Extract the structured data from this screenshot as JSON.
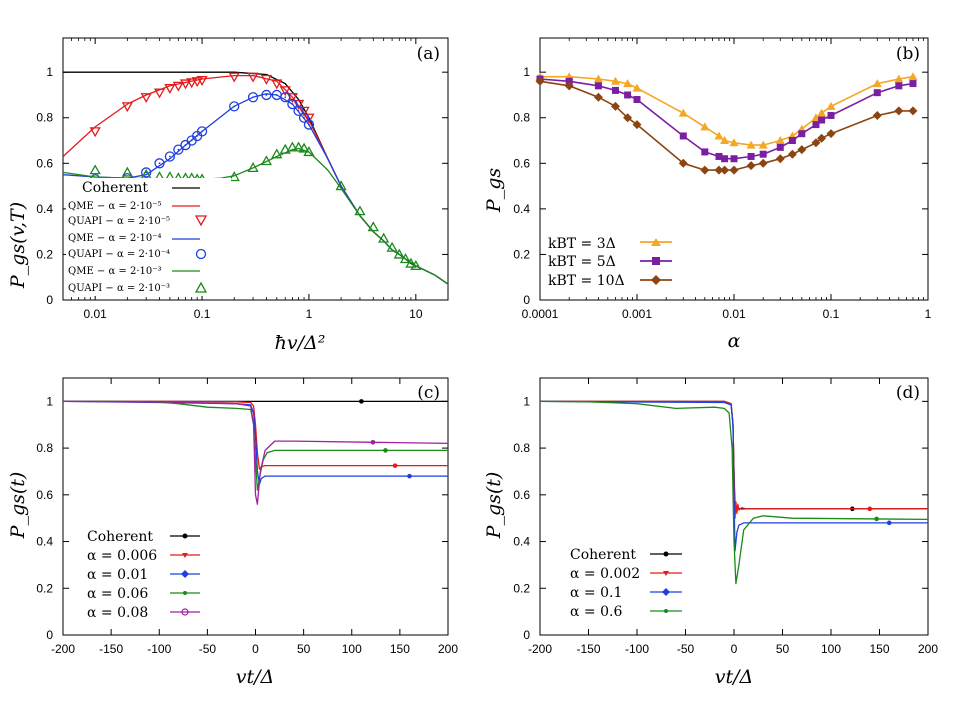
{
  "chart_data": [
    {
      "panel_label": "(a)",
      "type": "line",
      "xscale": "log",
      "xlim": [
        0.005,
        20
      ],
      "ylim": [
        0,
        1.15
      ],
      "xticks": [
        0.01,
        0.1,
        1,
        10
      ],
      "xtick_labels": [
        "0.01",
        "0.1",
        "1",
        "10"
      ],
      "yticks": [
        0,
        0.2,
        0.4,
        0.6,
        0.8,
        1
      ],
      "ytick_labels": [
        "0",
        "0.2",
        "0.4",
        "0.6",
        "0.8",
        "1"
      ],
      "xlabel": "ħv/Δ²",
      "ylabel": "P_gs(v,T)",
      "legend_position": "left",
      "series": [
        {
          "name": "Coherent",
          "kind": "line",
          "color": "#000000",
          "x": [
            0.005,
            0.05,
            0.1,
            0.2,
            0.4,
            0.6,
            0.8,
            1,
            1.5,
            2,
            3,
            4,
            5,
            6,
            7,
            8,
            9,
            10,
            15,
            20
          ],
          "y": [
            1,
            1,
            1,
            1,
            0.99,
            0.95,
            0.88,
            0.8,
            0.62,
            0.5,
            0.37,
            0.3,
            0.26,
            0.22,
            0.2,
            0.18,
            0.16,
            0.15,
            0.11,
            0.07
          ]
        },
        {
          "name": "QME − α = 2·10⁻⁵",
          "kind": "line",
          "color": "#e41a1c",
          "x": [
            0.005,
            0.01,
            0.02,
            0.03,
            0.05,
            0.1,
            0.2,
            0.3,
            0.5,
            0.7,
            1,
            1.5,
            2,
            3,
            4,
            5,
            6,
            7,
            8,
            10,
            15,
            20
          ],
          "y": [
            0.63,
            0.76,
            0.86,
            0.9,
            0.94,
            0.97,
            0.985,
            0.985,
            0.96,
            0.89,
            0.79,
            0.62,
            0.5,
            0.37,
            0.3,
            0.26,
            0.22,
            0.2,
            0.18,
            0.15,
            0.11,
            0.07
          ]
        },
        {
          "name": "QUAPI − α = 2·10⁻⁵",
          "kind": "markers",
          "marker": "triangle-down",
          "color": "#e41a1c",
          "x": [
            0.01,
            0.02,
            0.03,
            0.04,
            0.05,
            0.06,
            0.07,
            0.08,
            0.09,
            0.1,
            0.2,
            0.3,
            0.4,
            0.5,
            0.6,
            0.7,
            0.8,
            0.9,
            1
          ],
          "y": [
            0.74,
            0.85,
            0.89,
            0.91,
            0.93,
            0.94,
            0.95,
            0.955,
            0.96,
            0.965,
            0.98,
            0.98,
            0.97,
            0.95,
            0.92,
            0.89,
            0.86,
            0.83,
            0.8
          ]
        },
        {
          "name": "QME − α = 2·10⁻⁴",
          "kind": "line",
          "color": "#1f3fe0",
          "x": [
            0.005,
            0.01,
            0.02,
            0.03,
            0.05,
            0.07,
            0.1,
            0.2,
            0.3,
            0.4,
            0.5,
            0.7,
            1,
            1.5,
            2,
            3,
            4,
            5,
            6,
            7,
            8,
            10,
            15,
            20
          ],
          "y": [
            0.55,
            0.54,
            0.535,
            0.55,
            0.62,
            0.68,
            0.74,
            0.85,
            0.89,
            0.905,
            0.9,
            0.86,
            0.77,
            0.62,
            0.5,
            0.37,
            0.3,
            0.26,
            0.22,
            0.2,
            0.18,
            0.15,
            0.11,
            0.07
          ]
        },
        {
          "name": "QUAPI − α = 2·10⁻⁴",
          "kind": "markers",
          "marker": "circle-dot",
          "color": "#1f3fe0",
          "x": [
            0.01,
            0.02,
            0.03,
            0.04,
            0.05,
            0.06,
            0.07,
            0.08,
            0.09,
            0.1,
            0.2,
            0.3,
            0.4,
            0.5,
            0.6,
            0.7,
            0.8,
            0.9,
            1
          ],
          "y": [
            0.53,
            0.535,
            0.56,
            0.6,
            0.63,
            0.66,
            0.68,
            0.7,
            0.72,
            0.74,
            0.85,
            0.89,
            0.9,
            0.9,
            0.89,
            0.86,
            0.83,
            0.8,
            0.77
          ]
        },
        {
          "name": "QME − α = 2·10⁻³",
          "kind": "line",
          "color": "#1a8a1a",
          "x": [
            0.005,
            0.01,
            0.02,
            0.05,
            0.1,
            0.15,
            0.2,
            0.3,
            0.5,
            0.7,
            0.8,
            1,
            1.5,
            2,
            3,
            4,
            5,
            6,
            7,
            8,
            10,
            15,
            20
          ],
          "y": [
            0.56,
            0.54,
            0.535,
            0.53,
            0.53,
            0.535,
            0.545,
            0.58,
            0.63,
            0.66,
            0.665,
            0.65,
            0.57,
            0.49,
            0.37,
            0.3,
            0.26,
            0.22,
            0.2,
            0.18,
            0.15,
            0.11,
            0.07
          ]
        },
        {
          "name": "QUAPI − α = 2·10⁻³",
          "kind": "markers",
          "marker": "triangle-up",
          "color": "#1a8a1a",
          "x": [
            0.01,
            0.02,
            0.03,
            0.04,
            0.05,
            0.06,
            0.07,
            0.08,
            0.09,
            0.1,
            0.2,
            0.3,
            0.4,
            0.5,
            0.6,
            0.7,
            0.8,
            0.9,
            1,
            2,
            3,
            4,
            5,
            6,
            7,
            8,
            9,
            10
          ],
          "y": [
            0.57,
            0.56,
            0.55,
            0.54,
            0.54,
            0.535,
            0.535,
            0.535,
            0.53,
            0.53,
            0.54,
            0.58,
            0.61,
            0.64,
            0.66,
            0.67,
            0.67,
            0.665,
            0.65,
            0.5,
            0.39,
            0.32,
            0.27,
            0.23,
            0.2,
            0.18,
            0.16,
            0.15
          ]
        }
      ]
    },
    {
      "panel_label": "(b)",
      "type": "line",
      "xscale": "log",
      "xlim": [
        0.0001,
        1
      ],
      "ylim": [
        0,
        1.15
      ],
      "xticks": [
        0.0001,
        0.001,
        0.01,
        0.1,
        1
      ],
      "xtick_labels": [
        "0.0001",
        "0.001",
        "0.01",
        "0.1",
        "1"
      ],
      "yticks": [
        0,
        0.2,
        0.4,
        0.6,
        0.8,
        1
      ],
      "ytick_labels": [
        "0",
        "0.2",
        "0.4",
        "0.6",
        "0.8",
        "1"
      ],
      "xlabel": "α",
      "ylabel": "P_gs",
      "legend_position": "bottom-left",
      "series": [
        {
          "name": "kBT = 3Δ",
          "marker": "triangle-up",
          "color": "#f5a623",
          "x": [
            0.0001,
            0.0002,
            0.0004,
            0.0006,
            0.0008,
            0.001,
            0.003,
            0.005,
            0.007,
            0.008,
            0.01,
            0.015,
            0.02,
            0.03,
            0.04,
            0.05,
            0.07,
            0.08,
            0.1,
            0.3,
            0.5,
            0.7
          ],
          "y": [
            0.98,
            0.98,
            0.97,
            0.96,
            0.95,
            0.93,
            0.82,
            0.76,
            0.72,
            0.7,
            0.69,
            0.68,
            0.68,
            0.7,
            0.72,
            0.75,
            0.8,
            0.82,
            0.85,
            0.95,
            0.97,
            0.98
          ]
        },
        {
          "name": "kBT = 5Δ",
          "marker": "square",
          "color": "#7b1fa2",
          "x": [
            0.0001,
            0.0002,
            0.0004,
            0.0006,
            0.0008,
            0.001,
            0.003,
            0.005,
            0.007,
            0.008,
            0.01,
            0.015,
            0.02,
            0.03,
            0.04,
            0.05,
            0.07,
            0.08,
            0.1,
            0.3,
            0.5,
            0.7
          ],
          "y": [
            0.97,
            0.96,
            0.94,
            0.92,
            0.9,
            0.88,
            0.72,
            0.65,
            0.63,
            0.62,
            0.62,
            0.63,
            0.64,
            0.67,
            0.7,
            0.73,
            0.77,
            0.79,
            0.81,
            0.91,
            0.94,
            0.95
          ]
        },
        {
          "name": "kBT = 10Δ",
          "marker": "diamond",
          "color": "#8b4513",
          "x": [
            0.0001,
            0.0002,
            0.0004,
            0.0006,
            0.0008,
            0.001,
            0.003,
            0.005,
            0.007,
            0.008,
            0.01,
            0.015,
            0.02,
            0.03,
            0.04,
            0.05,
            0.07,
            0.08,
            0.1,
            0.3,
            0.5,
            0.7
          ],
          "y": [
            0.96,
            0.94,
            0.89,
            0.85,
            0.8,
            0.77,
            0.6,
            0.57,
            0.57,
            0.57,
            0.57,
            0.59,
            0.6,
            0.62,
            0.64,
            0.66,
            0.69,
            0.71,
            0.73,
            0.81,
            0.83,
            0.83
          ]
        }
      ]
    },
    {
      "panel_label": "(c)",
      "type": "line",
      "xscale": "linear",
      "xlim": [
        -200,
        200
      ],
      "ylim": [
        0,
        1.1
      ],
      "xticks": [
        -200,
        -150,
        -100,
        -50,
        0,
        50,
        100,
        150,
        200
      ],
      "xtick_labels": [
        "-200",
        "-150",
        "-100",
        "-50",
        "0",
        "50",
        "100",
        "150",
        "200"
      ],
      "yticks": [
        0,
        0.2,
        0.4,
        0.6,
        0.8,
        1
      ],
      "ytick_labels": [
        "0",
        "0.2",
        "0.4",
        "0.6",
        "0.8",
        "1"
      ],
      "xlabel": "vt/Δ",
      "ylabel": "P_gs(t)",
      "legend_position": "bottom-left",
      "series": [
        {
          "name": "Coherent",
          "color": "#000000",
          "marker_x": 110,
          "x": [
            -200,
            200
          ],
          "y": [
            1,
            1
          ]
        },
        {
          "name": "α = 0.006",
          "color": "#e41a1c",
          "marker_x": 145,
          "x": [
            -200,
            -100,
            -20,
            -5,
            -2,
            0,
            2,
            4,
            6,
            10,
            20,
            200
          ],
          "y": [
            1,
            1,
            0.998,
            0.995,
            0.98,
            0.9,
            0.78,
            0.71,
            0.72,
            0.725,
            0.725,
            0.725
          ]
        },
        {
          "name": "α = 0.01",
          "color": "#1f3fe0",
          "marker_x": 160,
          "x": [
            -200,
            -100,
            -20,
            -5,
            -2,
            0,
            2,
            4,
            6,
            10,
            20,
            200
          ],
          "y": [
            1,
            0.995,
            0.99,
            0.985,
            0.95,
            0.85,
            0.7,
            0.645,
            0.67,
            0.68,
            0.68,
            0.68
          ]
        },
        {
          "name": "α = 0.06",
          "color": "#1a8a1a",
          "marker_x": 135,
          "x": [
            -200,
            -150,
            -100,
            -80,
            -50,
            -20,
            -5,
            -2,
            0,
            2,
            5,
            8,
            12,
            20,
            40,
            200
          ],
          "y": [
            1,
            1,
            0.997,
            0.99,
            0.975,
            0.97,
            0.965,
            0.9,
            0.75,
            0.62,
            0.69,
            0.75,
            0.78,
            0.79,
            0.79,
            0.79
          ]
        },
        {
          "name": "α = 0.08",
          "color": "#a020a0",
          "marker_x": 122,
          "x": [
            -200,
            -100,
            -20,
            -5,
            -2,
            0,
            2,
            5,
            10,
            20,
            40,
            200
          ],
          "y": [
            1,
            0.998,
            0.99,
            0.98,
            0.9,
            0.6,
            0.56,
            0.7,
            0.79,
            0.83,
            0.83,
            0.82
          ]
        }
      ]
    },
    {
      "panel_label": "(d)",
      "type": "line",
      "xscale": "linear",
      "xlim": [
        -200,
        200
      ],
      "ylim": [
        0,
        1.1
      ],
      "xticks": [
        -200,
        -150,
        -100,
        -50,
        0,
        50,
        100,
        150,
        200
      ],
      "xtick_labels": [
        "-200",
        "-150",
        "-100",
        "-50",
        "0",
        "50",
        "100",
        "150",
        "200"
      ],
      "yticks": [
        0,
        0.2,
        0.4,
        0.6,
        0.8,
        1
      ],
      "ytick_labels": [
        "0",
        "0.2",
        "0.4",
        "0.6",
        "0.8",
        "1"
      ],
      "xlabel": "vt/Δ",
      "ylabel": "P_gs(t)",
      "legend_position": "bottom-left",
      "series": [
        {
          "name": "Coherent",
          "color": "#000000",
          "marker_x": 122,
          "x": [
            -200,
            -10,
            -3,
            -1,
            0,
            1,
            2,
            3,
            5,
            10,
            200
          ],
          "y": [
            1,
            1,
            0.99,
            0.9,
            0.7,
            0.55,
            0.53,
            0.55,
            0.54,
            0.54,
            0.54
          ]
        },
        {
          "name": "α = 0.002",
          "color": "#e41a1c",
          "marker_x": 140,
          "x": [
            -200,
            -10,
            -3,
            -1,
            0,
            1,
            2,
            3,
            4,
            5,
            8,
            12,
            200
          ],
          "y": [
            1,
            1,
            0.99,
            0.9,
            0.7,
            0.5,
            0.57,
            0.52,
            0.56,
            0.535,
            0.545,
            0.54,
            0.54
          ]
        },
        {
          "name": "α = 0.1",
          "color": "#1f3fe0",
          "marker_x": 160,
          "x": [
            -200,
            -10,
            -3,
            -1,
            0,
            1,
            3,
            5,
            10,
            200
          ],
          "y": [
            1,
            0.995,
            0.985,
            0.9,
            0.6,
            0.36,
            0.44,
            0.47,
            0.48,
            0.48
          ]
        },
        {
          "name": "α = 0.6",
          "color": "#1a8a1a",
          "marker_x": 147,
          "x": [
            -200,
            -150,
            -100,
            -60,
            -20,
            -10,
            -5,
            -2,
            0,
            2,
            5,
            10,
            20,
            30,
            60,
            200
          ],
          "y": [
            1,
            0.998,
            0.99,
            0.97,
            0.975,
            0.97,
            0.95,
            0.8,
            0.4,
            0.22,
            0.3,
            0.45,
            0.5,
            0.51,
            0.5,
            0.495
          ]
        }
      ]
    }
  ]
}
